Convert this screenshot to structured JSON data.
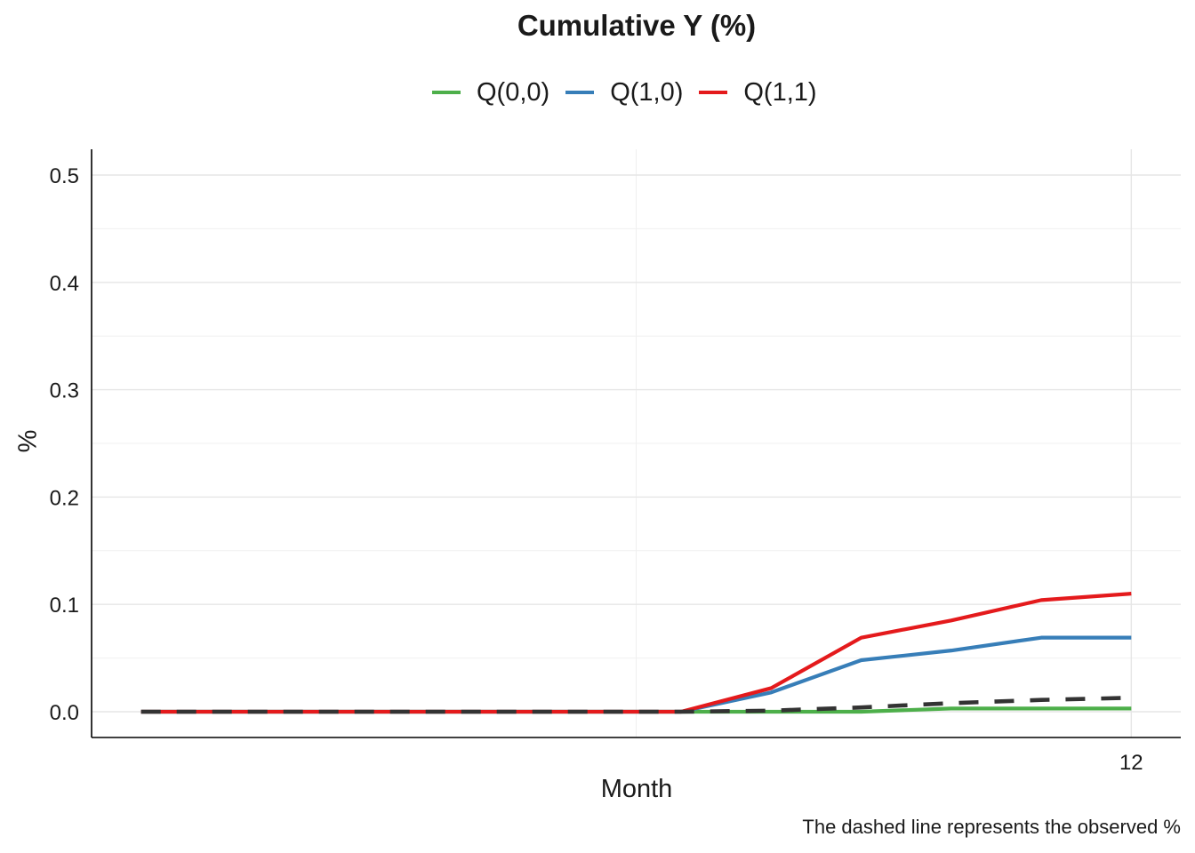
{
  "chart_data": {
    "type": "line",
    "title": "Cumulative Y (%)",
    "xlabel": "Month",
    "ylabel": "%",
    "caption": "The dashed line represents the observed %",
    "x": [
      1,
      2,
      3,
      4,
      5,
      6,
      7,
      8,
      9,
      10,
      11,
      12
    ],
    "x_tick_labels": [
      "12"
    ],
    "x_tick_values": [
      12
    ],
    "xlim": [
      0.45,
      12.55
    ],
    "ylim": [
      -0.024,
      0.524
    ],
    "y_ticks": [
      0.0,
      0.1,
      0.2,
      0.3,
      0.4,
      0.5
    ],
    "y_tick_labels": [
      "0.0",
      "0.1",
      "0.2",
      "0.3",
      "0.4",
      "0.5"
    ],
    "grid": true,
    "legend_position": "top",
    "series": [
      {
        "name": "Q(0,0)",
        "color": "#4daf4a",
        "style": "solid",
        "values": [
          0,
          0,
          0,
          0,
          0,
          0,
          0,
          0,
          0,
          0.003,
          0.003,
          0.003
        ]
      },
      {
        "name": "Q(1,0)",
        "color": "#377eb8",
        "style": "solid",
        "values": [
          0,
          0,
          0,
          0,
          0,
          0,
          0,
          0.018,
          0.048,
          0.057,
          0.069,
          0.069
        ]
      },
      {
        "name": "Q(1,1)",
        "color": "#e41a1c",
        "style": "solid",
        "values": [
          0,
          0,
          0,
          0,
          0,
          0,
          0,
          0.022,
          0.069,
          0.085,
          0.104,
          0.11
        ]
      },
      {
        "name": "",
        "color": "#333333",
        "style": "dashed",
        "values": [
          0,
          0,
          0,
          0,
          0,
          0,
          0,
          0.001,
          0.004,
          0.008,
          0.011,
          0.013
        ]
      }
    ]
  }
}
